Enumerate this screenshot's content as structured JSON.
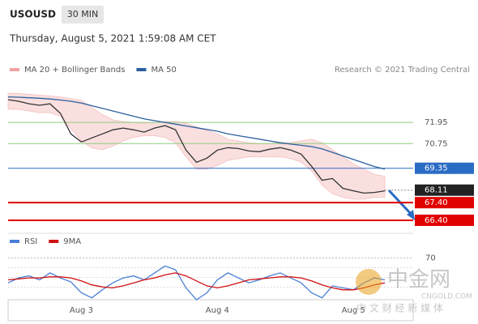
{
  "header": {
    "symbol": "USOUSD",
    "interval": "30 MIN",
    "datetime": "Thursday, August 5, 2021 1:59:08 AM CET",
    "credit": "Research © 2021 Trading Central"
  },
  "watermark": {
    "name": "中金网",
    "site": "CNGOLD.COM",
    "slogan": "中 文 财 经 新 媒 体"
  },
  "chart_data": [
    {
      "type": "line",
      "categories": [
        null,
        null,
        null,
        null,
        null,
        null,
        null,
        "Aug 3",
        null,
        null,
        null,
        null,
        null,
        null,
        null,
        null,
        null,
        null,
        null,
        null,
        "Aug 4",
        null,
        null,
        null,
        null,
        null,
        null,
        null,
        null,
        null,
        null,
        null,
        null,
        "Aug 5",
        null,
        null,
        null
      ],
      "ylim": [
        65.8,
        74.3
      ],
      "band": {
        "name": "MA 20 + Bollinger Bands",
        "color": "#f2a3a3",
        "upper": [
          73.6,
          73.6,
          73.55,
          73.5,
          73.45,
          73.4,
          73.3,
          73.2,
          72.8,
          72.4,
          72.1,
          72.0,
          71.95,
          71.9,
          71.95,
          72.0,
          72.0,
          71.9,
          71.7,
          71.5,
          71.3,
          71.0,
          70.9,
          70.8,
          70.75,
          70.75,
          70.8,
          70.8,
          70.9,
          71.0,
          70.8,
          70.4,
          70.0,
          69.6,
          69.3,
          69.0,
          68.9
        ],
        "lower": [
          72.7,
          72.7,
          72.6,
          72.5,
          72.5,
          72.3,
          71.6,
          70.9,
          70.5,
          70.4,
          70.6,
          70.9,
          71.1,
          71.2,
          71.2,
          71.1,
          70.8,
          70.0,
          69.3,
          69.3,
          69.5,
          69.8,
          69.9,
          70.0,
          70.0,
          70.0,
          70.0,
          69.9,
          69.7,
          69.2,
          68.4,
          67.9,
          67.7,
          67.6,
          67.6,
          67.7,
          67.7
        ]
      },
      "series": [
        {
          "color": "#333333",
          "values": [
            73.24,
            73.15,
            73.01,
            72.92,
            73.01,
            72.46,
            71.3,
            70.84,
            71.07,
            71.3,
            71.53,
            71.63,
            71.53,
            71.4,
            71.63,
            71.77,
            71.53,
            70.38,
            69.69,
            69.92,
            70.38,
            70.52,
            70.47,
            70.33,
            70.29,
            70.43,
            70.52,
            70.38,
            70.15,
            69.46,
            68.67,
            68.77,
            68.21,
            68.07,
            67.94,
            67.98,
            68.07
          ]
        },
        {
          "name": "MA 50",
          "color": "#2b5f9e",
          "values": [
            73.4,
            73.38,
            73.35,
            73.32,
            73.28,
            73.22,
            73.15,
            73.05,
            72.9,
            72.75,
            72.6,
            72.45,
            72.3,
            72.15,
            72.05,
            71.95,
            71.85,
            71.75,
            71.65,
            71.55,
            71.45,
            71.3,
            71.2,
            71.1,
            71.0,
            70.9,
            70.8,
            70.72,
            70.65,
            70.58,
            70.45,
            70.25,
            70.05,
            69.85,
            69.65,
            69.45,
            69.3
          ]
        }
      ],
      "levels": [
        {
          "value": 71.95,
          "color": "#8fce7f"
        },
        {
          "value": 70.75,
          "color": "#8fce7f"
        },
        {
          "value": 69.35,
          "color": "#2a6bc4"
        },
        {
          "value": 68.11,
          "color": "#222222"
        },
        {
          "value": 67.4,
          "label": "67.40",
          "color": "#e00000"
        },
        {
          "value": 66.4,
          "label": "66.40",
          "color": "#e00000"
        }
      ]
    },
    {
      "type": "line",
      "ylim": [
        20,
        85
      ],
      "yticks": [
        70
      ],
      "series": [
        {
          "name": "RSI",
          "color": "#4a7fd6",
          "values": [
            45,
            50,
            52,
            48,
            55,
            50,
            46,
            35,
            30,
            38,
            45,
            50,
            52,
            48,
            55,
            62,
            58,
            40,
            28,
            35,
            48,
            55,
            50,
            45,
            48,
            52,
            55,
            50,
            45,
            35,
            30,
            42,
            40,
            38,
            45,
            50,
            48
          ]
        },
        {
          "name": "9MA",
          "color": "#d01010",
          "values": [
            48,
            49,
            50,
            50,
            51,
            51,
            50,
            47,
            43,
            41,
            40,
            42,
            45,
            48,
            50,
            53,
            55,
            52,
            47,
            42,
            40,
            42,
            45,
            48,
            49,
            50,
            51,
            51,
            50,
            47,
            43,
            40,
            38,
            38,
            40,
            43,
            45
          ]
        }
      ]
    }
  ]
}
